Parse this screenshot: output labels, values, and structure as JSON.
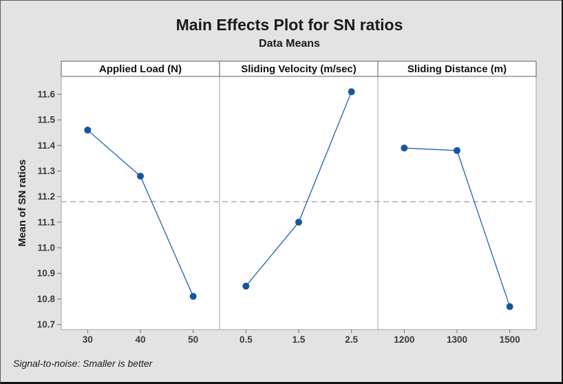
{
  "window": {
    "background_color": "#e3e3e3",
    "border_color": "#121212"
  },
  "header": {
    "title": "Main Effects Plot for SN ratios",
    "subtitle": "Data Means"
  },
  "footer": {
    "note": "Signal-to-noise: Smaller is better"
  },
  "chart_data": {
    "type": "line",
    "title": "Main Effects Plot for SN ratios",
    "subtitle": "Data Means",
    "ylabel": "Mean of SN ratios",
    "ylim": [
      10.68,
      11.67
    ],
    "ytick_labels": [
      "11.6",
      "11.5",
      "11.4",
      "11.3",
      "11.2",
      "11.1",
      "11.0",
      "10.9",
      "10.8",
      "10.7"
    ],
    "reference_line": 11.18,
    "grid": "off",
    "panels": [
      {
        "header": "Applied Load (N)",
        "categories": [
          "30",
          "40",
          "50"
        ],
        "values": [
          11.46,
          11.28,
          10.81
        ]
      },
      {
        "header": "Sliding Velocity (m/sec)",
        "categories": [
          "0.5",
          "1.5",
          "2.5"
        ],
        "values": [
          10.85,
          11.1,
          11.61
        ]
      },
      {
        "header": "Sliding Distance (m)",
        "categories": [
          "1200",
          "1300",
          "1500"
        ],
        "values": [
          11.39,
          11.38,
          10.77
        ]
      }
    ],
    "colors": {
      "marker": "#17569f",
      "line": "#1f5fa8",
      "panel_fill": "#ffffff",
      "panel_border": "#a3a3a3",
      "header_border": "#5e5e5e",
      "reference": "#9c9c9c",
      "tick": "#6e6e6e",
      "tick_text": "#3a3a3a",
      "header_text": "#111111"
    }
  }
}
